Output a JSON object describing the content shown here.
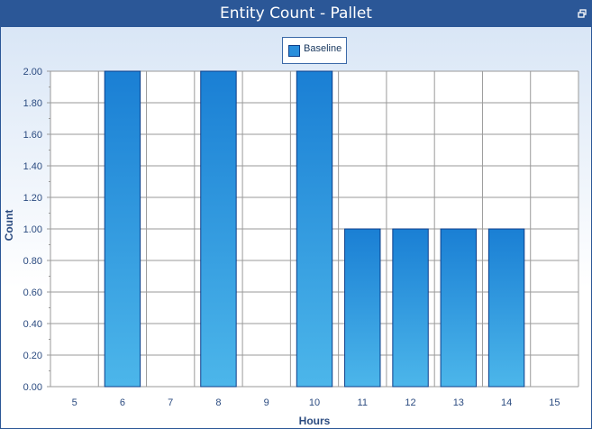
{
  "window": {
    "title": "Entity Count - Pallet",
    "restore_icon": "restore-icon"
  },
  "colors": {
    "titlebar": "#2b5797",
    "bar_top": "#1a7fd4",
    "bar_bottom": "#4cb6ea",
    "bar_border": "#0c3e8a",
    "grid": "#9a9a9a",
    "axis_text": "#2b4b80"
  },
  "chart_data": {
    "type": "bar",
    "title": "",
    "xlabel": "Hours",
    "ylabel": "Count",
    "categories": [
      "5",
      "6",
      "7",
      "8",
      "9",
      "10",
      "11",
      "12",
      "13",
      "14",
      "15"
    ],
    "series": [
      {
        "name": "Baseline",
        "values": [
          0,
          2,
          0,
          2,
          0,
          2,
          1,
          1,
          1,
          1,
          0
        ]
      }
    ],
    "ylim": [
      0,
      2
    ],
    "yticks": [
      "0.00",
      "0.20",
      "0.40",
      "0.60",
      "0.80",
      "1.00",
      "1.20",
      "1.40",
      "1.60",
      "1.80",
      "2.00"
    ],
    "grid": true,
    "legend_position": "top-center"
  }
}
